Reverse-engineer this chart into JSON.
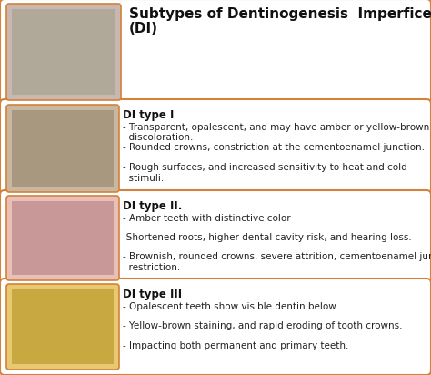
{
  "title_line1": "Subtypes of Dentinogenesis  Imperficeta",
  "title_line2": "(DI)",
  "title_fontsize": 11,
  "bg_color": "#ffffff",
  "border_color": "#D4813A",
  "outer_border_color": "#D0CCCC",
  "types": [
    {
      "name": "DI type I",
      "bullets": [
        "- Transparent, opalescent, and may have amber or yellow-brown\n  discoloration.",
        "- Rounded crowns, constriction at the cementoenamel junction.",
        "- Rough surfaces, and increased sensitivity to heat and cold\n  stimuli."
      ],
      "img_color": "#a89880",
      "img_color2": "#c8b8a0"
    },
    {
      "name": "DI type II.",
      "bullets": [
        "- Amber teeth with distinctive color",
        "-Shortened roots, higher dental cavity risk, and hearing loss.",
        "- Brownish, rounded crowns, severe attrition, cementoenamel junction\n  restriction."
      ],
      "img_color": "#c89898",
      "img_color2": "#e8c0b8"
    },
    {
      "name": "DI type III",
      "bullets": [
        "- Opalescent teeth show visible dentin below.",
        "- Yellow-brown staining, and rapid eroding of tooth crowns.",
        "- Impacting both permanent and primary teeth."
      ],
      "img_color": "#c8a840",
      "img_color2": "#e8c870"
    }
  ],
  "name_fontsize": 8.5,
  "bullet_fontsize": 7.5,
  "header_img_color": "#b0a898"
}
